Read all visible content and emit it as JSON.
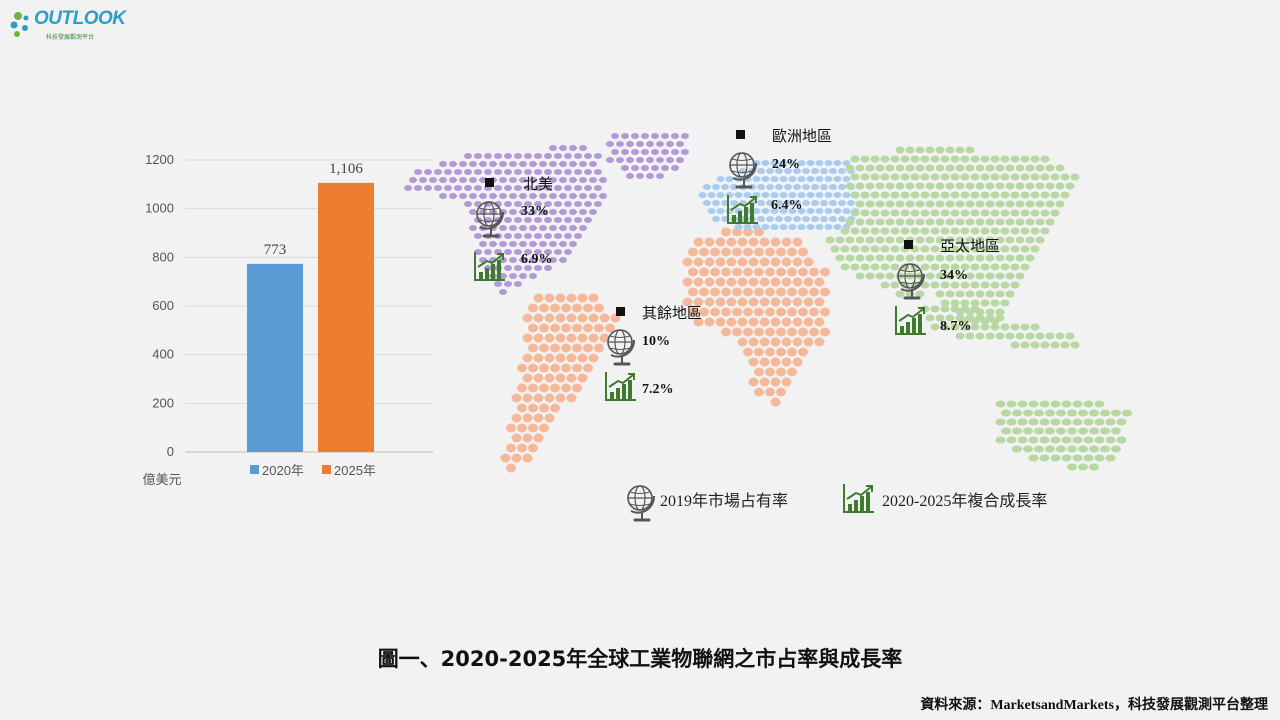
{
  "logo": {
    "word": "OUTLOOK",
    "subtitle": "科技發展觀測平台"
  },
  "chart_data": [
    {
      "type": "bar",
      "categories": [
        "2020年",
        "2025年"
      ],
      "values": [
        773,
        1106
      ],
      "value_labels": [
        "773",
        "1,106"
      ],
      "colors": [
        "#5b9bd5",
        "#ed7d31"
      ],
      "ylim": [
        0,
        1200
      ],
      "yticks": [
        0,
        200,
        400,
        600,
        800,
        1000,
        1200
      ],
      "ylabel": "億美元",
      "legend": "bottom",
      "grid": true
    },
    {
      "type": "table",
      "regions": [
        {
          "name": "北美",
          "share": "33%",
          "cagr": "6.9%",
          "color": "#b39ad6"
        },
        {
          "name": "歐洲地區",
          "share": "24%",
          "cagr": "6.4%",
          "color": "#a9cdee"
        },
        {
          "name": "亞太地區",
          "share": "34%",
          "cagr": "8.7%",
          "color": "#b7d8a3"
        },
        {
          "name": "其餘地區",
          "share": "10%",
          "cagr": "7.2%",
          "color": "#f5b99a"
        }
      ],
      "legend": {
        "share": "2019年市場占有率",
        "cagr": "2020-2025年複合成長率"
      }
    }
  ],
  "caption": "圖一、2020-2025年全球工業物聯網之市占率與成長率",
  "source": "資料來源：MarketsandMarkets，科技發展觀測平台整理"
}
